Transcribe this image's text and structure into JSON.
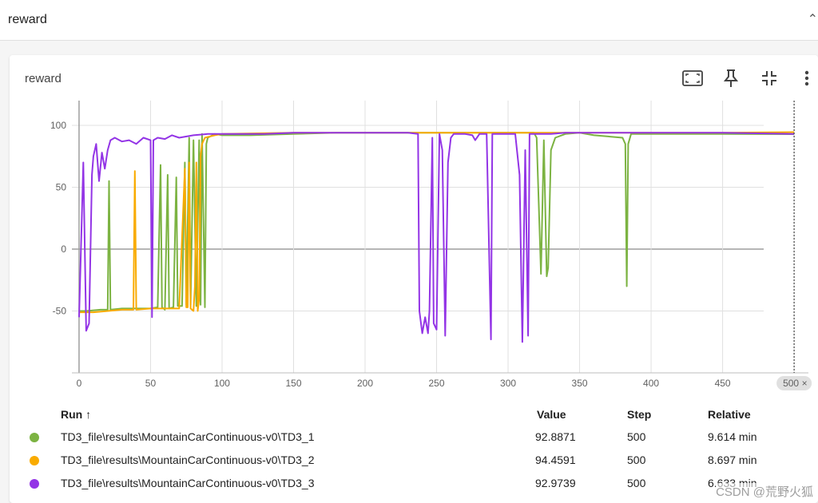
{
  "header": {
    "title": "reward"
  },
  "card": {
    "title": "reward"
  },
  "toolbar": {
    "icons": [
      "fullscreen-icon",
      "pin-icon",
      "fit-domain-icon",
      "more-vert-icon"
    ]
  },
  "chart_data": {
    "type": "line",
    "title": "",
    "xlabel": "",
    "ylabel": "",
    "xlim": [
      -5,
      510
    ],
    "ylim": [
      -100,
      120
    ],
    "xticks": [
      "0",
      "50",
      "100",
      "150",
      "200",
      "250",
      "300",
      "350",
      "400",
      "450",
      "500"
    ],
    "yticks": [
      "100",
      "50",
      "0",
      "-50"
    ],
    "cursor_label": "500",
    "grid": true,
    "series": [
      {
        "name": "TD3_file\\results\\MountainCarContinuous-v0\\TD3_1",
        "color": "#7cb342",
        "points": [
          [
            0,
            -50
          ],
          [
            5,
            -50
          ],
          [
            15,
            -49
          ],
          [
            20,
            -49
          ],
          [
            21,
            55
          ],
          [
            22,
            -49
          ],
          [
            30,
            -48
          ],
          [
            40,
            -48
          ],
          [
            50,
            -48
          ],
          [
            55,
            -47
          ],
          [
            57,
            68
          ],
          [
            58,
            -47
          ],
          [
            60,
            -49
          ],
          [
            62,
            60
          ],
          [
            63,
            -48
          ],
          [
            66,
            -47
          ],
          [
            68,
            58
          ],
          [
            69,
            -46
          ],
          [
            72,
            -46
          ],
          [
            74,
            70
          ],
          [
            75,
            -45
          ],
          [
            77,
            90
          ],
          [
            78,
            -45
          ],
          [
            80,
            88
          ],
          [
            82,
            -46
          ],
          [
            84,
            88
          ],
          [
            85,
            -45
          ],
          [
            86,
            93
          ],
          [
            88,
            -47
          ],
          [
            89,
            85
          ],
          [
            90,
            90
          ],
          [
            95,
            93
          ],
          [
            100,
            92
          ],
          [
            120,
            92
          ],
          [
            150,
            93
          ],
          [
            180,
            94
          ],
          [
            200,
            94
          ],
          [
            250,
            94
          ],
          [
            300,
            94
          ],
          [
            318,
            94
          ],
          [
            320,
            90
          ],
          [
            323,
            -20
          ],
          [
            325,
            88
          ],
          [
            327,
            -22
          ],
          [
            328,
            -15
          ],
          [
            330,
            80
          ],
          [
            333,
            90
          ],
          [
            340,
            93
          ],
          [
            350,
            94
          ],
          [
            360,
            92
          ],
          [
            370,
            91
          ],
          [
            380,
            90
          ],
          [
            382,
            85
          ],
          [
            383,
            -30
          ],
          [
            384,
            85
          ],
          [
            386,
            93
          ],
          [
            400,
            93
          ],
          [
            420,
            93
          ],
          [
            450,
            93
          ],
          [
            500,
            92.9
          ]
        ]
      },
      {
        "name": "TD3_file\\results\\MountainCarContinuous-v0\\TD3_2",
        "color": "#f9ab00",
        "points": [
          [
            0,
            -51
          ],
          [
            10,
            -51
          ],
          [
            20,
            -50
          ],
          [
            30,
            -49
          ],
          [
            38,
            -49
          ],
          [
            39,
            63
          ],
          [
            40,
            -49
          ],
          [
            50,
            -48
          ],
          [
            60,
            -48
          ],
          [
            70,
            -48
          ],
          [
            74,
            65
          ],
          [
            75,
            -47
          ],
          [
            76,
            -47
          ],
          [
            77,
            70
          ],
          [
            78,
            -48
          ],
          [
            80,
            -50
          ],
          [
            81,
            -30
          ],
          [
            82,
            70
          ],
          [
            83,
            -50
          ],
          [
            84,
            -40
          ],
          [
            85,
            75
          ],
          [
            86,
            85
          ],
          [
            88,
            90
          ],
          [
            95,
            92
          ],
          [
            100,
            93
          ],
          [
            150,
            94
          ],
          [
            200,
            94
          ],
          [
            250,
            94
          ],
          [
            300,
            94
          ],
          [
            350,
            94
          ],
          [
            400,
            94
          ],
          [
            450,
            94
          ],
          [
            500,
            94.5
          ]
        ]
      },
      {
        "name": "TD3_file\\results\\MountainCarContinuous-v0\\TD3_3",
        "color": "#9334e6",
        "points": [
          [
            0,
            -55
          ],
          [
            3,
            70
          ],
          [
            5,
            -66
          ],
          [
            7,
            -60
          ],
          [
            9,
            60
          ],
          [
            10,
            75
          ],
          [
            12,
            85
          ],
          [
            14,
            55
          ],
          [
            16,
            78
          ],
          [
            18,
            65
          ],
          [
            20,
            80
          ],
          [
            22,
            88
          ],
          [
            25,
            90
          ],
          [
            30,
            87
          ],
          [
            35,
            88
          ],
          [
            40,
            85
          ],
          [
            45,
            90
          ],
          [
            50,
            88
          ],
          [
            51,
            -55
          ],
          [
            52,
            88
          ],
          [
            55,
            90
          ],
          [
            60,
            89
          ],
          [
            65,
            92
          ],
          [
            70,
            90
          ],
          [
            80,
            92
          ],
          [
            90,
            93
          ],
          [
            100,
            93
          ],
          [
            130,
            93
          ],
          [
            150,
            94
          ],
          [
            200,
            94
          ],
          [
            230,
            94
          ],
          [
            237,
            93
          ],
          [
            238,
            -50
          ],
          [
            240,
            -68
          ],
          [
            242,
            -55
          ],
          [
            244,
            -68
          ],
          [
            245,
            -50
          ],
          [
            247,
            90
          ],
          [
            248,
            -60
          ],
          [
            250,
            -65
          ],
          [
            252,
            93
          ],
          [
            254,
            80
          ],
          [
            256,
            -70
          ],
          [
            258,
            70
          ],
          [
            260,
            90
          ],
          [
            262,
            93
          ],
          [
            270,
            93
          ],
          [
            275,
            92
          ],
          [
            277,
            88
          ],
          [
            280,
            93
          ],
          [
            285,
            93
          ],
          [
            288,
            -73
          ],
          [
            289,
            93
          ],
          [
            290,
            93
          ],
          [
            300,
            93
          ],
          [
            305,
            93
          ],
          [
            308,
            60
          ],
          [
            310,
            -75
          ],
          [
            312,
            80
          ],
          [
            314,
            -70
          ],
          [
            315,
            93
          ],
          [
            320,
            93
          ],
          [
            330,
            93
          ],
          [
            340,
            94
          ],
          [
            350,
            94
          ],
          [
            400,
            94
          ],
          [
            450,
            94
          ],
          [
            500,
            93
          ]
        ]
      }
    ]
  },
  "table": {
    "headers": {
      "run": "Run ↑",
      "value": "Value",
      "step": "Step",
      "relative": "Relative"
    },
    "rows": [
      {
        "run": "TD3_file\\results\\MountainCarContinuous-v0\\TD3_1",
        "value": "92.8871",
        "step": "500",
        "relative": "9.614 min",
        "color": "#7cb342"
      },
      {
        "run": "TD3_file\\results\\MountainCarContinuous-v0\\TD3_2",
        "value": "94.4591",
        "step": "500",
        "relative": "8.697 min",
        "color": "#f9ab00"
      },
      {
        "run": "TD3_file\\results\\MountainCarContinuous-v0\\TD3_3",
        "value": "92.9739",
        "step": "500",
        "relative": "6.633 min",
        "color": "#9334e6"
      }
    ]
  },
  "watermark": "CSDN @荒野火狐"
}
